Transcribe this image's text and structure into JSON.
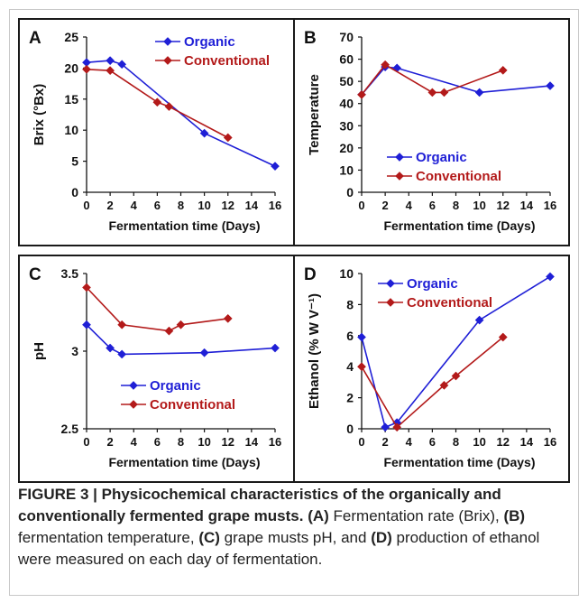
{
  "colors": {
    "organic": "#1f1fd6",
    "conventional": "#b31a1a"
  },
  "chart_data": [
    {
      "panel": "A",
      "type": "line",
      "xlabel": "Fermentation time (Days)",
      "ylabel": "Brix (°Bx)",
      "xlim": [
        0,
        16
      ],
      "ylim": [
        0,
        25
      ],
      "xticks": [
        0,
        2,
        4,
        6,
        8,
        10,
        12,
        14,
        16
      ],
      "yticks": [
        0,
        5,
        10,
        15,
        20,
        25
      ],
      "legend_position": "top-right",
      "series": [
        {
          "name": "Organic",
          "color": "organic",
          "points": [
            [
              0,
              20.9
            ],
            [
              2,
              21.2
            ],
            [
              3,
              20.6
            ],
            [
              10,
              9.5
            ],
            [
              16,
              4.2
            ]
          ]
        },
        {
          "name": "Conventional",
          "color": "conventional",
          "points": [
            [
              0,
              19.8
            ],
            [
              2,
              19.6
            ],
            [
              6,
              14.5
            ],
            [
              7,
              13.8
            ],
            [
              12,
              8.8
            ]
          ]
        }
      ]
    },
    {
      "panel": "B",
      "type": "line",
      "xlabel": "Fermentation time (Days)",
      "ylabel": "Temperature",
      "xlim": [
        0,
        16
      ],
      "ylim": [
        0,
        70
      ],
      "xticks": [
        0,
        2,
        4,
        6,
        8,
        10,
        12,
        14,
        16
      ],
      "yticks": [
        0,
        10,
        20,
        30,
        40,
        50,
        60,
        70
      ],
      "legend_position": "bottom-left",
      "series": [
        {
          "name": "Organic",
          "color": "organic",
          "points": [
            [
              0,
              44
            ],
            [
              2,
              56.5
            ],
            [
              3,
              56
            ],
            [
              10,
              45
            ],
            [
              16,
              48
            ]
          ]
        },
        {
          "name": "Conventional",
          "color": "conventional",
          "points": [
            [
              0,
              44
            ],
            [
              2,
              57.5
            ],
            [
              6,
              45
            ],
            [
              7,
              45
            ],
            [
              12,
              55
            ]
          ]
        }
      ]
    },
    {
      "panel": "C",
      "type": "line",
      "xlabel": "Fermentation time (Days)",
      "ylabel": "pH",
      "xlim": [
        0,
        16
      ],
      "ylim": [
        2.5,
        3.5
      ],
      "xticks": [
        0,
        2,
        4,
        6,
        8,
        10,
        12,
        14,
        16
      ],
      "yticks": [
        2.5,
        3,
        3.5
      ],
      "legend_position": "bottom-center",
      "series": [
        {
          "name": "Organic",
          "color": "organic",
          "points": [
            [
              0,
              3.17
            ],
            [
              2,
              3.02
            ],
            [
              3,
              2.98
            ],
            [
              10,
              2.99
            ],
            [
              16,
              3.02
            ]
          ]
        },
        {
          "name": "Conventional",
          "color": "conventional",
          "points": [
            [
              0,
              3.41
            ],
            [
              3,
              3.17
            ],
            [
              7,
              3.13
            ],
            [
              8,
              3.17
            ],
            [
              12,
              3.21
            ]
          ]
        }
      ]
    },
    {
      "panel": "D",
      "type": "line",
      "xlabel": "Fermentation time (Days)",
      "ylabel": "Ethanol (% W V⁻¹)",
      "xlim": [
        0,
        16
      ],
      "ylim": [
        0,
        10
      ],
      "xticks": [
        0,
        2,
        4,
        6,
        8,
        10,
        12,
        14,
        16
      ],
      "yticks": [
        0,
        2,
        4,
        6,
        8,
        10
      ],
      "legend_position": "top-left",
      "series": [
        {
          "name": "Organic",
          "color": "organic",
          "points": [
            [
              0,
              5.9
            ],
            [
              2,
              0.1
            ],
            [
              3,
              0.4
            ],
            [
              10,
              7.0
            ],
            [
              16,
              9.8
            ]
          ]
        },
        {
          "name": "Conventional",
          "color": "conventional",
          "points": [
            [
              0,
              4.0
            ],
            [
              3,
              0.1
            ],
            [
              7,
              2.8
            ],
            [
              8,
              3.4
            ],
            [
              12,
              5.9
            ]
          ]
        }
      ]
    }
  ],
  "caption": {
    "title": "FIGURE 3 | Physicochemical characteristics of the organically and conventionally fermented grape musts.",
    "parts": [
      {
        "label": "(A)",
        "text": " Fermentation rate (Brix), "
      },
      {
        "label": "(B)",
        "text": " fermentation temperature, "
      },
      {
        "label": "(C)",
        "text": " grape musts pH, and "
      },
      {
        "label": "(D)",
        "text": " production of ethanol were measured on each day of fermentation."
      }
    ]
  }
}
